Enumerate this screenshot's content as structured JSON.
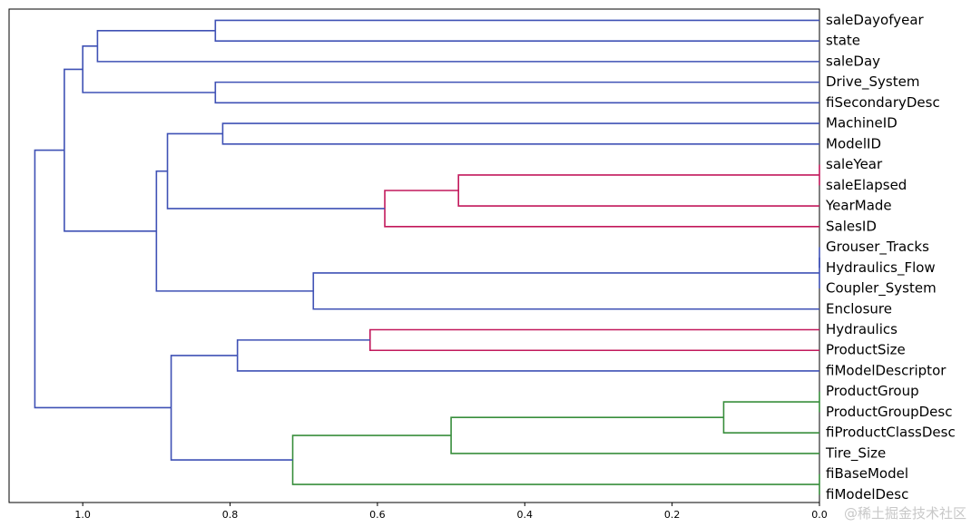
{
  "chart_data": {
    "type": "dendrogram",
    "orientation": "left",
    "xlim": [
      1.1,
      0.0
    ],
    "xticks": [
      "1.0",
      "0.8",
      "0.6",
      "0.4",
      "0.2",
      "0.0"
    ],
    "xtick_values": [
      1.0,
      0.8,
      0.6,
      0.4,
      0.2,
      0.0
    ],
    "grid": false,
    "colors": {
      "blue": "#3f51b5",
      "pink": "#c2185b",
      "green": "#388e3c",
      "frame": "#000000"
    },
    "leaves": [
      "saleDayofyear",
      "state",
      "saleDay",
      "Drive_System",
      "fiSecondaryDesc",
      "MachineID",
      "ModelID",
      "saleYear",
      "saleElapsed",
      "YearMade",
      "SalesID",
      "Grouser_Tracks",
      "Hydraulics_Flow",
      "Coupler_System",
      "Enclosure",
      "Hydraulics",
      "ProductSize",
      "fiModelDescriptor",
      "ProductGroup",
      "ProductGroupDesc",
      "fiProductClassDesc",
      "Tire_Size",
      "fiBaseModel",
      "fiModelDesc"
    ],
    "merges": [
      {
        "a": "saleDayofyear",
        "b": "state",
        "height": 0.82,
        "color": "blue"
      },
      {
        "a": "saleDayofyear|state",
        "b": "saleDay",
        "height": 0.98,
        "color": "blue"
      },
      {
        "a": "Drive_System",
        "b": "fiSecondaryDesc",
        "height": 0.82,
        "color": "blue"
      },
      {
        "a": "saleDayofyear|state|saleDay",
        "b": "Drive_System|fiSecondaryDesc",
        "height": 1.0,
        "color": "blue"
      },
      {
        "a": "MachineID",
        "b": "ModelID",
        "height": 0.81,
        "color": "blue"
      },
      {
        "a": "saleYear",
        "b": "saleElapsed",
        "height": 0.0,
        "color": "pink"
      },
      {
        "a": "saleYear|saleElapsed",
        "b": "YearMade",
        "height": 0.49,
        "color": "pink"
      },
      {
        "a": "saleYear|saleElapsed|YearMade",
        "b": "SalesID",
        "height": 0.59,
        "color": "pink"
      },
      {
        "a": "MachineID|ModelID",
        "b": "saleYear|saleElapsed|YearMade|SalesID",
        "height": 0.885,
        "color": "blue"
      },
      {
        "a": "Grouser_Tracks",
        "b": "Hydraulics_Flow",
        "height": 0.0,
        "color": "blue"
      },
      {
        "a": "Grouser_Tracks|Hydraulics_Flow",
        "b": "Coupler_System",
        "height": 0.0,
        "color": "blue"
      },
      {
        "a": "Grouser_Tracks|Hydraulics_Flow|Coupler_System",
        "b": "Enclosure",
        "height": 0.687,
        "color": "blue"
      },
      {
        "a": "MachineID..SalesID",
        "b": "Grouser_Tracks..Enclosure",
        "height": 0.9,
        "color": "blue"
      },
      {
        "a": "saleDayofyear..fiSecondaryDesc",
        "b": "MachineID..Enclosure",
        "height": 1.025,
        "color": "blue"
      },
      {
        "a": "Hydraulics",
        "b": "ProductSize",
        "height": 0.61,
        "color": "pink"
      },
      {
        "a": "Hydraulics|ProductSize",
        "b": "fiModelDescriptor",
        "height": 0.79,
        "color": "blue"
      },
      {
        "a": "ProductGroup",
        "b": "ProductGroupDesc",
        "height": 0.0,
        "color": "green"
      },
      {
        "a": "ProductGroup|ProductGroupDesc",
        "b": "fiProductClassDesc",
        "height": 0.13,
        "color": "green"
      },
      {
        "a": "ProductGroup|ProductGroupDesc|fiProductClassDesc",
        "b": "Tire_Size",
        "height": 0.5,
        "color": "green"
      },
      {
        "a": "fiBaseModel",
        "b": "fiModelDesc",
        "height": 0.0,
        "color": "green"
      },
      {
        "a": "ProductGroup..Tire_Size",
        "b": "fiBaseModel|fiModelDesc",
        "height": 0.715,
        "color": "green"
      },
      {
        "a": "Hydraulics..fiModelDescriptor",
        "b": "ProductGroup..fiModelDesc",
        "height": 0.88,
        "color": "blue"
      },
      {
        "a": "saleDayofyear..Enclosure",
        "b": "Hydraulics..fiModelDesc",
        "height": 1.065,
        "color": "blue"
      }
    ]
  },
  "watermark": "@稀土掘金技术社区"
}
